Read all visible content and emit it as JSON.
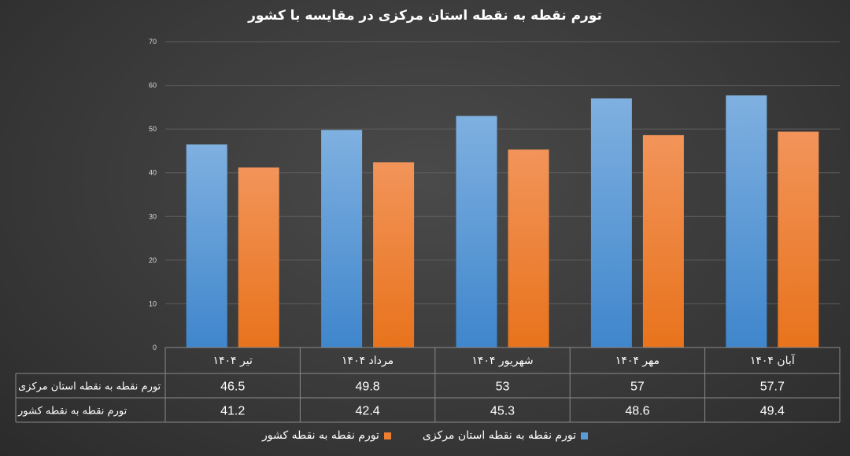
{
  "chart_data": {
    "type": "bar",
    "title": "تورم نقطه به نقطه استان مرکزی در مقایسه با کشور",
    "categories": [
      "تیر ۱۴۰۴",
      "مرداد ۱۴۰۴",
      "شهریور ۱۴۰۴",
      "مهر ۱۴۰۴",
      "آبان ۱۴۰۴"
    ],
    "series": [
      {
        "name": "تورم نقطه به نقطه استان مرکزی",
        "color": "#5b9bd5",
        "values": [
          46.5,
          49.8,
          53,
          57,
          57.7
        ]
      },
      {
        "name": "تورم نقطه به نقطه کشور",
        "color": "#ed7d31",
        "values": [
          41.2,
          42.4,
          45.3,
          48.6,
          49.4
        ]
      }
    ],
    "ylim": [
      0,
      70
    ],
    "yticks": [
      "0",
      "10",
      "20",
      "30",
      "40",
      "50",
      "60",
      "70"
    ],
    "grid": true,
    "data_table": true,
    "legend": "bottom"
  }
}
